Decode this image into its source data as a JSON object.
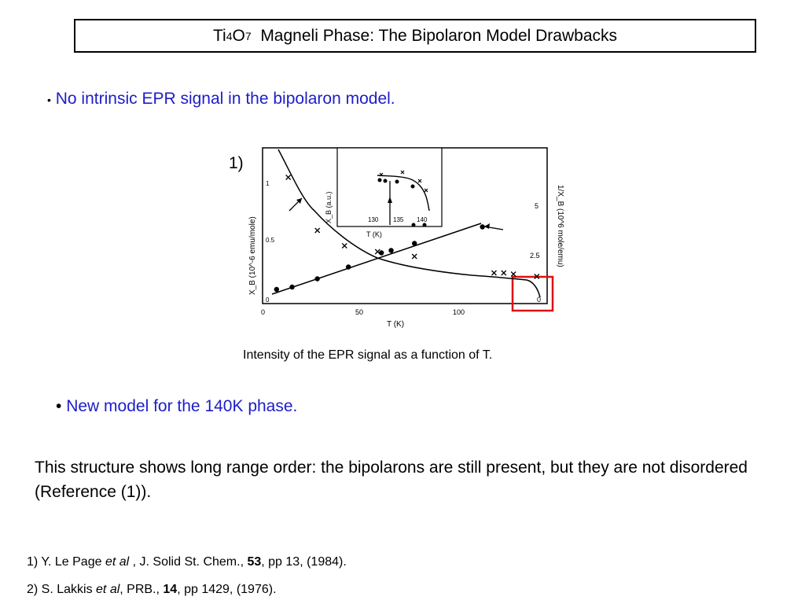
{
  "title": {
    "formula_ti": "Ti",
    "formula_ti_sub": "4",
    "formula_o": "O",
    "formula_o_sub": "7",
    "rest": "Magneli Phase: The Bipolaron Model Drawbacks"
  },
  "bullet1": {
    "dot": "•",
    "text": "No intrinsic EPR signal in the bipolaron model."
  },
  "figure": {
    "label": "1)",
    "caption": "Intensity of the EPR signal as a function of T.",
    "highlight_color": "#e01010"
  },
  "chart_data": {
    "type": "scatter",
    "x_ticks": [
      "0",
      "50",
      "100"
    ],
    "x_label": "T (K)",
    "left_axis_label": "X_B (10^-6 emu/mole)",
    "left_ticks": [
      "1",
      "0.5",
      "0"
    ],
    "right_axis_label": "1/X_B (10^6 mole/emu)",
    "right_ticks": [
      "5",
      "2.5",
      "0"
    ],
    "inset": {
      "x_ticks": [
        "130",
        "135",
        "140"
      ],
      "x_label": "T (K)",
      "y_label": "X_B (a.u.)"
    },
    "series": [
      {
        "marker": "dot",
        "points": [
          [
            6,
            0.1
          ],
          [
            14,
            0.12
          ],
          [
            27,
            0.19
          ],
          [
            43,
            0.29
          ],
          [
            60,
            0.41
          ],
          [
            65,
            0.43
          ],
          [
            77,
            0.49
          ],
          [
            112,
            0.63
          ]
        ]
      },
      {
        "marker": "x",
        "points": [
          [
            12,
            1.05
          ],
          [
            27,
            0.6
          ],
          [
            41,
            0.47
          ],
          [
            58,
            0.42
          ],
          [
            77,
            0.38
          ],
          [
            118,
            0.24
          ],
          [
            123,
            0.24
          ],
          [
            128,
            0.23
          ],
          [
            140,
            0.21
          ]
        ]
      }
    ]
  },
  "bullet2": {
    "dot": "•",
    "text": "New model for the 140K phase."
  },
  "paragraph": "This structure shows long range order: the bipolarons are still present, but they are not disordered (Reference (1)).",
  "references": [
    {
      "n": "1) Y. Le Page ",
      "etal": "et al",
      "mid": " , J. Solid St. Chem., ",
      "vol": "53",
      "rest": ", pp 13, (1984)."
    },
    {
      "n": "2) S. Lakkis ",
      "etal": "et al",
      "mid": ", PRB., ",
      "vol": "14",
      "rest": ", pp 1429, (1976)."
    }
  ]
}
